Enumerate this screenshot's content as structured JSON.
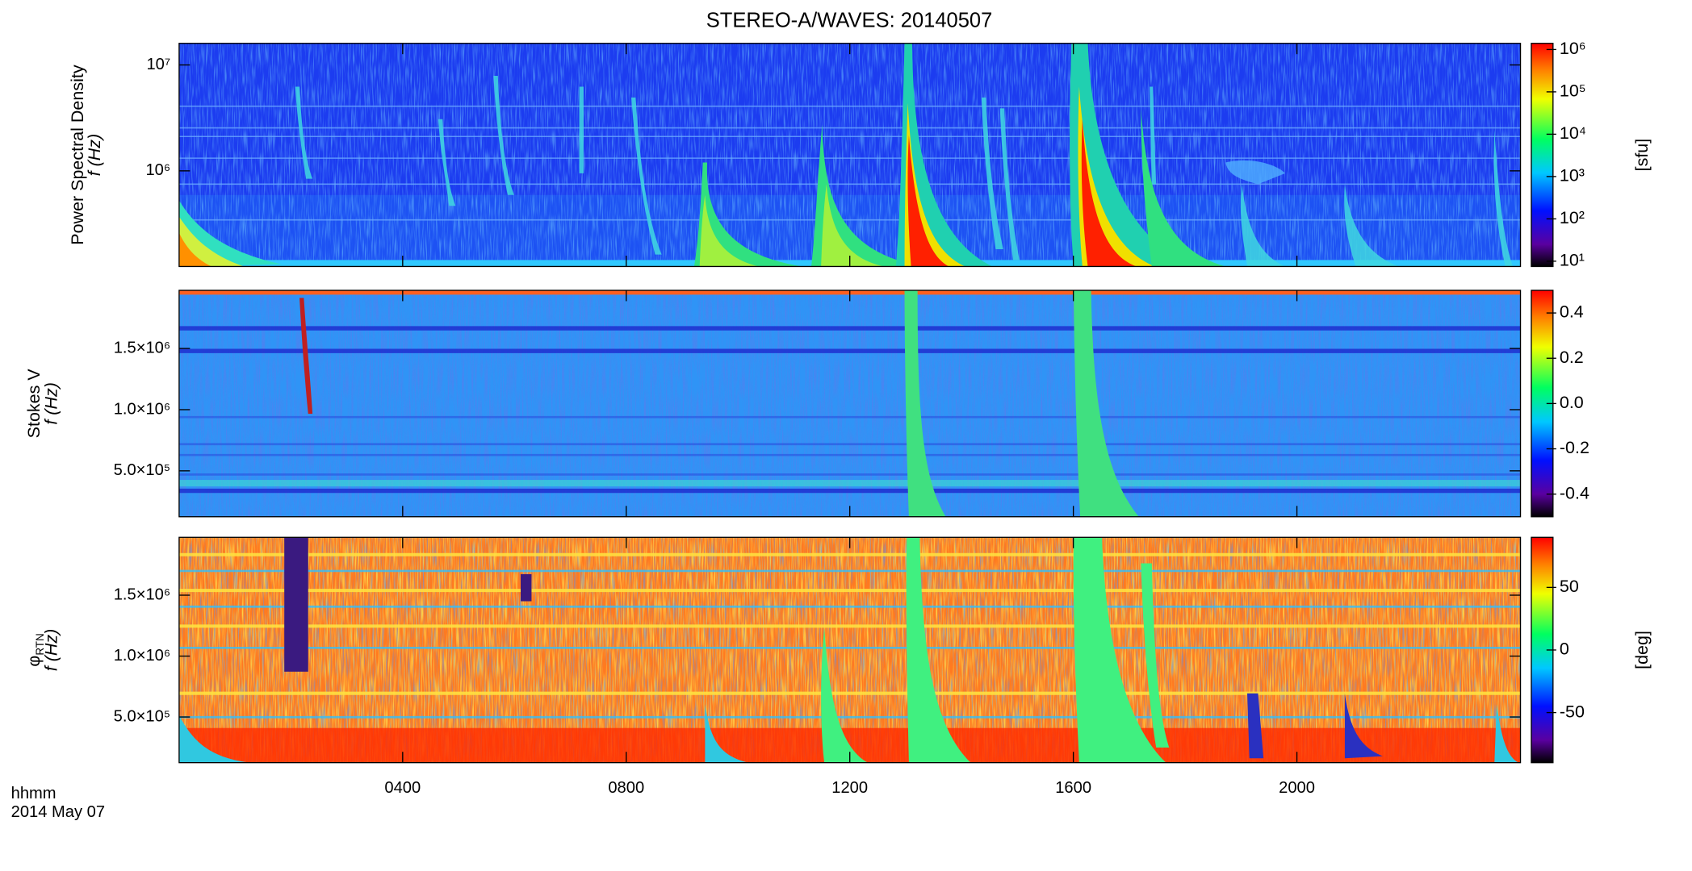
{
  "title": "STEREO-A/WAVES: 20140507",
  "chart_data": [
    {
      "type": "spectrogram",
      "ylabel": "Power Spectral Density",
      "ylabel2": "f (Hz)",
      "log_y": true,
      "ylim": [
        125000,
        16000000
      ],
      "yticks": [
        {
          "value": 1000000,
          "label": "10⁶"
        },
        {
          "value": 10000000,
          "label": "10⁷"
        }
      ],
      "colorbar": {
        "log": true,
        "lim": [
          7.5,
          1400000
        ],
        "ticks": [
          {
            "value": 10,
            "label": "10¹"
          },
          {
            "value": 100,
            "label": "10²"
          },
          {
            "value": 1000,
            "label": "10³"
          },
          {
            "value": 10000,
            "label": "10⁴"
          },
          {
            "value": 100000,
            "label": "10⁵"
          },
          {
            "value": 1000000,
            "label": "10⁶"
          }
        ],
        "label": "[sfu]"
      }
    },
    {
      "type": "spectrogram",
      "ylabel": "Stokes V",
      "ylabel2": "f (Hz)",
      "log_y": false,
      "ylim": [
        125000,
        1975000
      ],
      "yticks": [
        {
          "value": 500000,
          "label": "5.0×10⁵"
        },
        {
          "value": 1000000,
          "label": "1.0×10⁶"
        },
        {
          "value": 1500000,
          "label": "1.5×10⁶"
        }
      ],
      "colorbar": {
        "log": false,
        "lim": [
          -0.5,
          0.5
        ],
        "ticks": [
          -0.4,
          -0.2,
          {
            "value": 0,
            "label": "0.0"
          },
          0.2,
          0.4
        ]
      }
    },
    {
      "type": "spectrogram",
      "ylabel": "φ",
      "ylabel_sub": "RTN",
      "ylabel2": "f (Hz)",
      "log_y": false,
      "ylim": [
        125000,
        1975000
      ],
      "yticks": [
        {
          "value": 500000,
          "label": "5.0×10⁵"
        },
        {
          "value": 1000000,
          "label": "1.0×10⁶"
        },
        {
          "value": 1500000,
          "label": "1.5×10⁶"
        }
      ],
      "colorbar": {
        "log": false,
        "lim": [
          -90,
          90
        ],
        "ticks": [
          -50,
          0,
          50
        ],
        "label": "[deg]"
      },
      "xlim": [
        0,
        24
      ],
      "xticks": [
        {
          "value": 4,
          "label": "0400"
        },
        {
          "value": 8,
          "label": "0800"
        },
        {
          "value": 12,
          "label": "1200"
        },
        {
          "value": 16,
          "label": "1600"
        },
        {
          "value": 20,
          "label": "2000"
        }
      ],
      "xlabel": "hhmm",
      "date_label": "2014 May 07"
    }
  ]
}
